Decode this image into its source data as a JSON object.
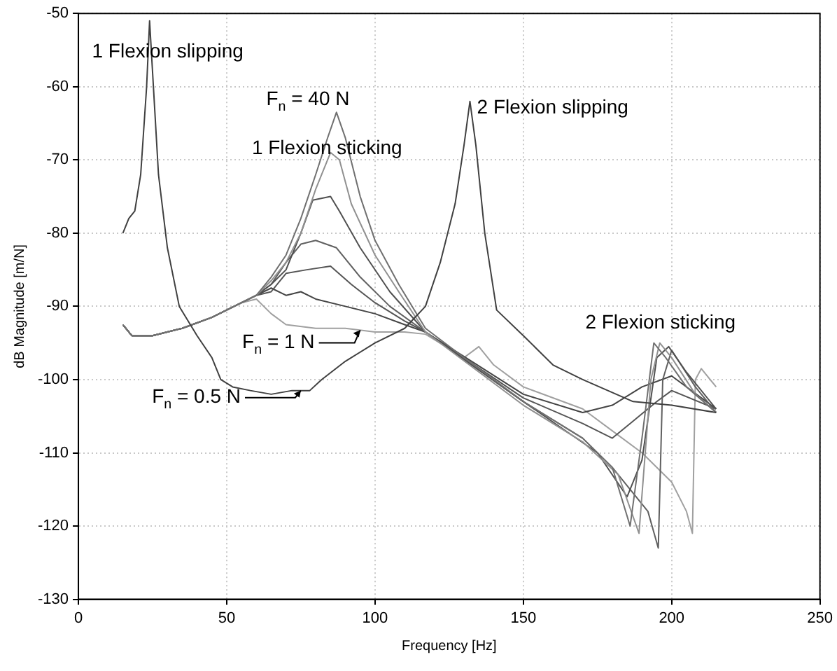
{
  "chart_data": {
    "type": "line",
    "xlabel": "Frequency [Hz]",
    "ylabel": "dB Magnitude [m/N]",
    "xlim": [
      0,
      250
    ],
    "xticks": [
      0,
      50,
      100,
      150,
      200,
      250
    ],
    "ylim": [
      -130,
      -50
    ],
    "yticks": [
      -130,
      -120,
      -110,
      -100,
      -90,
      -80,
      -70,
      -60,
      -50
    ],
    "grid": true,
    "legend": false,
    "marker": "none",
    "line_style": "solid",
    "series": [
      {
        "color": "#404040",
        "x": [
          15,
          17,
          19,
          21,
          23,
          24,
          25,
          27,
          30,
          34,
          40,
          45,
          48,
          52,
          58,
          65,
          72,
          78,
          82,
          90,
          100,
          110,
          117,
          122,
          127,
          130,
          132,
          134,
          137,
          141,
          150,
          160,
          170,
          187,
          200,
          215
        ],
        "values": [
          -80,
          -78,
          -77,
          -72,
          -60,
          -51,
          -58,
          -72,
          -82,
          -90,
          -94,
          -97,
          -100,
          -101,
          -101.5,
          -102,
          -101.5,
          -101.5,
          -100,
          -97.5,
          -95,
          -93,
          -90,
          -84,
          -76,
          -68,
          -62,
          -68,
          -80,
          -90.5,
          -94,
          -98,
          -100,
          -103,
          -103.5,
          -104.5
        ]
      },
      {
        "color": "#707070",
        "x": [
          15,
          18,
          25,
          35,
          45,
          55,
          60,
          65,
          70,
          75,
          80,
          84,
          87,
          90,
          95,
          100,
          108,
          117,
          130,
          150,
          170,
          180,
          186,
          190,
          194,
          198,
          205,
          215
        ],
        "values": [
          -92.5,
          -94,
          -94,
          -93,
          -91.5,
          -89.5,
          -88.5,
          -86,
          -83,
          -78,
          -72,
          -67,
          -63.5,
          -67,
          -75,
          -81,
          -87,
          -93,
          -97,
          -103,
          -108,
          -112,
          -120,
          -108,
          -95,
          -97,
          -101,
          -104.5
        ]
      },
      {
        "color": "#909090",
        "x": [
          15,
          18,
          25,
          35,
          45,
          55,
          60,
          65,
          70,
          75,
          80,
          85,
          88,
          92,
          100,
          108,
          117,
          150,
          170,
          182,
          189,
          193,
          196,
          200,
          208,
          215
        ],
        "values": [
          -92.5,
          -94,
          -94,
          -93,
          -91.5,
          -89.5,
          -88.5,
          -86.5,
          -84,
          -80,
          -74,
          -69,
          -70,
          -76,
          -83,
          -88,
          -93.5,
          -103.5,
          -108.5,
          -113,
          -121,
          -100,
          -95,
          -97,
          -102,
          -104.5
        ]
      },
      {
        "color": "#505050",
        "x": [
          15,
          18,
          25,
          35,
          45,
          55,
          60,
          65,
          70,
          75,
          79,
          85,
          88,
          95,
          105,
          117,
          150,
          175,
          185,
          190,
          195,
          199,
          205,
          215
        ],
        "values": [
          -92.5,
          -94,
          -94,
          -93,
          -91.5,
          -89.5,
          -88.5,
          -87,
          -85,
          -80,
          -75.5,
          -75,
          -77,
          -82,
          -88,
          -93.5,
          -103,
          -110,
          -116,
          -111,
          -97,
          -95.5,
          -99,
          -104
        ]
      },
      {
        "color": "#606060",
        "x": [
          15,
          18,
          25,
          35,
          45,
          55,
          60,
          65,
          70,
          75,
          80,
          87,
          95,
          105,
          117,
          150,
          170,
          180,
          192,
          195.5,
          197,
          200,
          208,
          215
        ],
        "values": [
          -92.5,
          -94,
          -94,
          -93,
          -91.5,
          -89.5,
          -88.5,
          -87,
          -84,
          -81.5,
          -81,
          -82,
          -86,
          -90,
          -93.5,
          -103,
          -108,
          -112,
          -118,
          -123,
          -100,
          -96,
          -101,
          -104.5
        ]
      },
      {
        "color": "#555555",
        "x": [
          15,
          18,
          25,
          35,
          45,
          55,
          60,
          65,
          70,
          77,
          85,
          92,
          100,
          110,
          117,
          150,
          170,
          180,
          186,
          195,
          200,
          215
        ],
        "values": [
          -92.5,
          -94,
          -94,
          -93,
          -91.5,
          -89.5,
          -88.5,
          -88,
          -85.5,
          -85,
          -84.5,
          -87,
          -89.5,
          -92,
          -93.5,
          -102.5,
          -106,
          -108,
          -106,
          -103,
          -101.5,
          -104
        ]
      },
      {
        "color": "#454545",
        "x": [
          15,
          18,
          25,
          35,
          45,
          55,
          60,
          65,
          70,
          75,
          80,
          90,
          100,
          110,
          117,
          150,
          170,
          180,
          190,
          200,
          215
        ],
        "values": [
          -92.5,
          -94,
          -94,
          -93,
          -91.5,
          -89.5,
          -88.5,
          -87.5,
          -88.5,
          -88,
          -89,
          -90,
          -91,
          -92.5,
          -93.5,
          -102,
          -104.5,
          -103.5,
          -101,
          -99.5,
          -104
        ]
      },
      {
        "color": "#a0a0a0",
        "x": [
          15,
          18,
          25,
          35,
          45,
          55,
          60,
          65,
          70,
          80,
          90,
          100,
          110,
          117,
          130,
          135,
          140,
          150,
          170,
          180,
          190,
          200,
          205,
          207,
          208,
          210,
          215
        ],
        "values": [
          -92.5,
          -94,
          -94,
          -93,
          -91.5,
          -89.5,
          -89,
          -91,
          -92.5,
          -93,
          -93,
          -93.5,
          -93.5,
          -93.8,
          -97,
          -95.5,
          -98,
          -101,
          -104,
          -107,
          -110,
          -114,
          -118,
          -121,
          -100,
          -98.5,
          -101
        ]
      }
    ],
    "annotations": [
      {
        "text": "1 Flexion slipping",
        "x": 24,
        "y": -51
      },
      {
        "text": "F$_{n}$ = 40 N",
        "x": 87,
        "y": -63.5
      },
      {
        "text": "1 Flexion sticking",
        "x": 85,
        "y": -69
      },
      {
        "text": "2 Flexion slipping",
        "x": 132,
        "y": -62
      },
      {
        "text": "2 Flexion sticking",
        "x": 196,
        "y": -95
      },
      {
        "text": "F$_{n}$ = 1 N",
        "x": 95,
        "y": -93.25
      },
      {
        "text": "F$_{n}$ = 0.5 N",
        "x": 75,
        "y": -101.5
      }
    ]
  }
}
